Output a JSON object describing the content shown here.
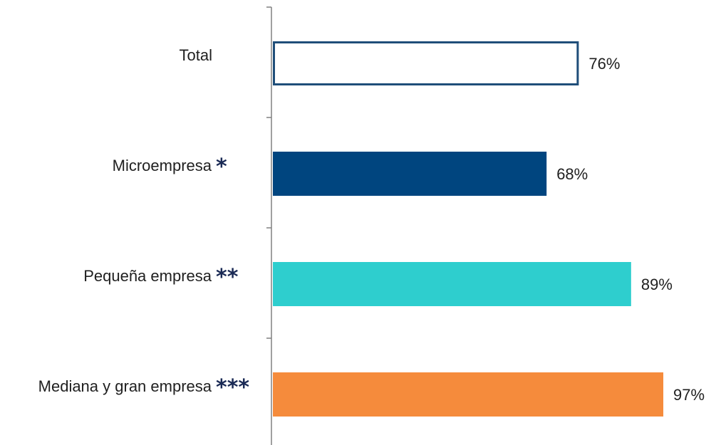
{
  "chart_data": {
    "type": "bar",
    "orientation": "horizontal",
    "categories": [
      "Total",
      "Microempresa",
      "Pequeña empresa",
      "Mediana y gran empresa"
    ],
    "markers": [
      "",
      "*",
      "**",
      "***"
    ],
    "values": [
      76,
      68,
      89,
      97
    ],
    "value_labels": [
      "76%",
      "68%",
      "89%",
      "97%"
    ],
    "colors": [
      "#ffffff",
      "#00457f",
      "#2ecece",
      "#f58b3c"
    ],
    "outline_color": "#1f4e79",
    "xlim": [
      0,
      100
    ],
    "grid": false,
    "legend": "none"
  }
}
